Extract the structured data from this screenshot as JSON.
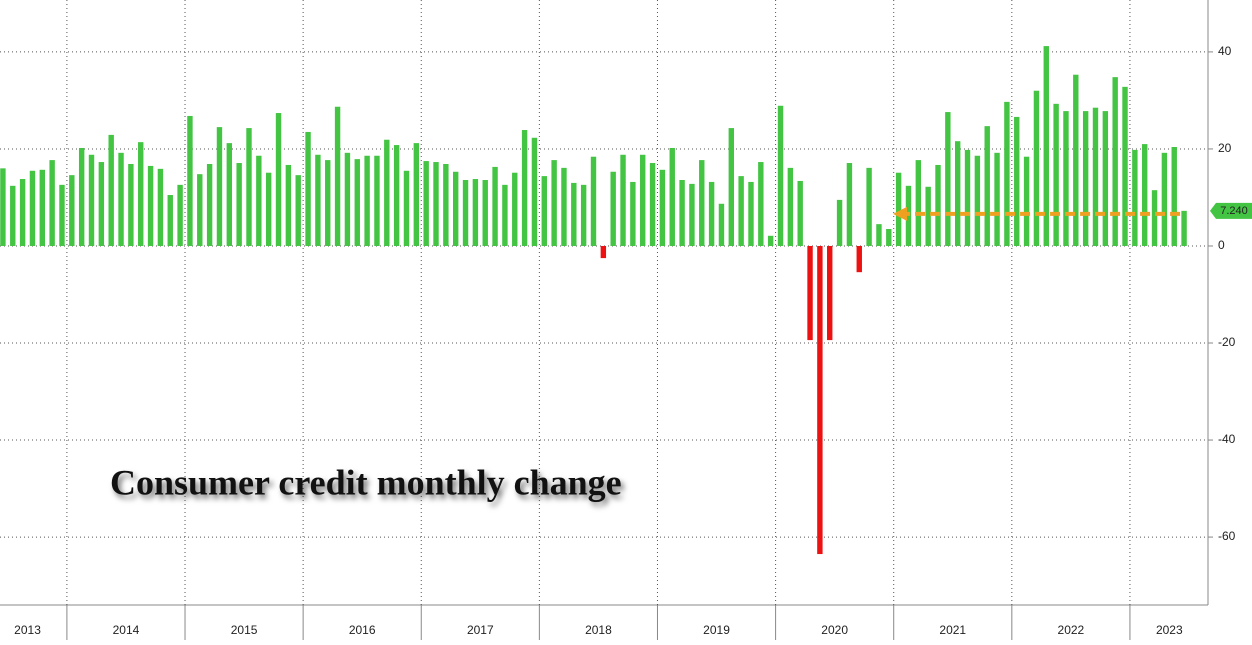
{
  "chart_data": {
    "type": "bar",
    "title": "Consumer credit monthly change",
    "categories": [
      null,
      null,
      null,
      "2013",
      null,
      null,
      null,
      null,
      null,
      null,
      null,
      null,
      null,
      "2014",
      null,
      null,
      null,
      null,
      null,
      null,
      null,
      null,
      null,
      null,
      null,
      "2015",
      null,
      null,
      null,
      null,
      null,
      null,
      null,
      null,
      null,
      null,
      null,
      "2016",
      null,
      null,
      null,
      null,
      null,
      null,
      null,
      null,
      null,
      null,
      null,
      "2017",
      null,
      null,
      null,
      null,
      null,
      null,
      null,
      null,
      null,
      null,
      null,
      "2018",
      null,
      null,
      null,
      null,
      null,
      null,
      null,
      null,
      null,
      null,
      null,
      "2019",
      null,
      null,
      null,
      null,
      null,
      null,
      null,
      null,
      null,
      null,
      null,
      "2020",
      null,
      null,
      null,
      null,
      null,
      null,
      null,
      null,
      null,
      null,
      null,
      "2021",
      null,
      null,
      null,
      null,
      null,
      null,
      null,
      null,
      null,
      null,
      null,
      "2022",
      null,
      null,
      null,
      null,
      null,
      null,
      null,
      null,
      null,
      "2023",
      null
    ],
    "values": [
      16,
      12.4,
      13.8,
      15.5,
      15.7,
      17.7,
      12.6,
      14.6,
      20.2,
      18.8,
      17.3,
      22.9,
      19.2,
      16.9,
      21.4,
      16.5,
      15.9,
      10.5,
      12.6,
      26.8,
      14.8,
      16.9,
      24.5,
      21.2,
      17.1,
      24.3,
      18.6,
      15.1,
      27.4,
      16.7,
      14.6,
      23.5,
      18.8,
      17.7,
      28.7,
      19.2,
      17.9,
      18.6,
      18.6,
      21.9,
      20.8,
      15.5,
      21.2,
      17.5,
      17.3,
      16.9,
      15.3,
      13.6,
      13.8,
      13.6,
      16.3,
      12.6,
      15.1,
      23.9,
      22.3,
      14.4,
      17.7,
      16.1,
      13.0,
      12.6,
      18.4,
      -2.5,
      15.3,
      18.8,
      13.2,
      18.8,
      17.1,
      15.7,
      20.2,
      13.6,
      12.8,
      17.7,
      13.2,
      8.7,
      24.3,
      14.4,
      13.2,
      17.3,
      2.1,
      28.9,
      16.1,
      13.4,
      -19.4,
      -63.5,
      -19.4,
      9.5,
      17.1,
      -5.4,
      16.1,
      4.5,
      3.5,
      15.1,
      12.4,
      17.7,
      12.2,
      16.7,
      27.6,
      21.6,
      19.8,
      18.6,
      24.7,
      19.2,
      29.7,
      26.6,
      18.4,
      32,
      41.2,
      29.3,
      27.8,
      35.3,
      27.8,
      28.5,
      27.8,
      34.8,
      32.8,
      19.8,
      21,
      11.5,
      19.2,
      20.4,
      7.24
    ],
    "positive_color": "#43c443",
    "negative_color": "#ee1111",
    "ylim": [
      -74,
      50.7
    ],
    "yticks": [
      -60,
      -40,
      -20,
      0,
      20,
      40
    ],
    "grid": true,
    "annotation": {
      "text": "7.240",
      "color": "#f0a020"
    }
  }
}
